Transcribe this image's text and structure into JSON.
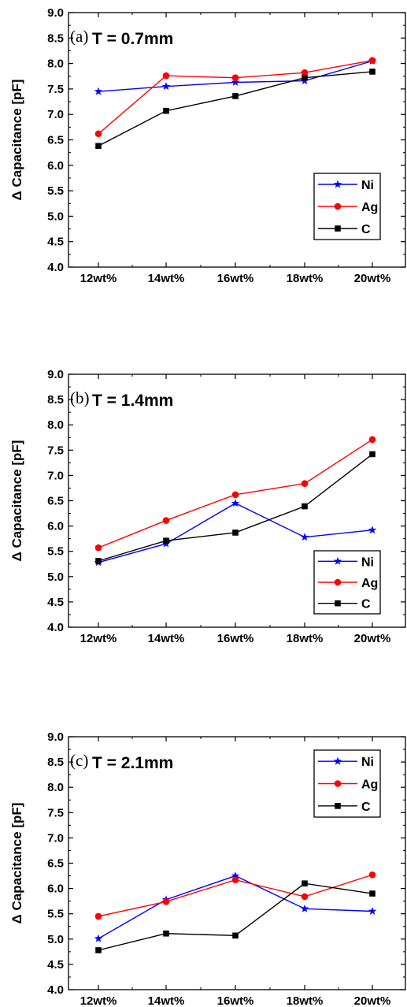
{
  "chart_data": [
    {
      "type": "line",
      "panel_label": "(a)",
      "title": "T = 0.7mm",
      "ylabel": "Δ Capacitance [pF]",
      "xlabel": "",
      "categories": [
        "12wt%",
        "14wt%",
        "16wt%",
        "18wt%",
        "20wt%"
      ],
      "ylim": [
        4.0,
        9.0
      ],
      "yticks": [
        "4.0",
        "4.5",
        "5.0",
        "5.5",
        "6.0",
        "6.5",
        "7.0",
        "7.5",
        "8.0",
        "8.5",
        "9.0"
      ],
      "legend_position": "bottom-right",
      "series": [
        {
          "name": "Ni",
          "color": "#0000ff",
          "marker": "star",
          "values": [
            7.45,
            7.55,
            7.63,
            7.66,
            8.05
          ]
        },
        {
          "name": "Ag",
          "color": "#ff0000",
          "marker": "circle",
          "values": [
            6.62,
            7.76,
            7.72,
            7.82,
            8.06
          ]
        },
        {
          "name": "C",
          "color": "#000000",
          "marker": "square",
          "values": [
            6.38,
            7.07,
            7.36,
            7.72,
            7.84
          ]
        }
      ]
    },
    {
      "type": "line",
      "panel_label": "(b)",
      "title": "T = 1.4mm",
      "ylabel": "Δ Capacitance [pF]",
      "xlabel": "",
      "categories": [
        "12wt%",
        "14wt%",
        "16wt%",
        "18wt%",
        "20wt%"
      ],
      "ylim": [
        4.0,
        9.0
      ],
      "yticks": [
        "4.0",
        "4.5",
        "5.0",
        "5.5",
        "6.0",
        "6.5",
        "7.0",
        "7.5",
        "8.0",
        "8.5",
        "9.0"
      ],
      "legend_position": "bottom-right",
      "series": [
        {
          "name": "Ni",
          "color": "#0000ff",
          "marker": "star",
          "values": [
            5.28,
            5.65,
            6.45,
            5.78,
            5.92
          ]
        },
        {
          "name": "Ag",
          "color": "#ff0000",
          "marker": "circle",
          "values": [
            5.57,
            6.11,
            6.62,
            6.84,
            7.71
          ]
        },
        {
          "name": "C",
          "color": "#000000",
          "marker": "square",
          "values": [
            5.31,
            5.71,
            5.87,
            6.39,
            7.42
          ]
        }
      ]
    },
    {
      "type": "line",
      "panel_label": "(c)",
      "title": "T = 2.1mm",
      "ylabel": "Δ Capacitance [pF]",
      "xlabel": "",
      "categories": [
        "12wt%",
        "14wt%",
        "16wt%",
        "18wt%",
        "20wt%"
      ],
      "ylim": [
        4.0,
        9.0
      ],
      "yticks": [
        "4.0",
        "4.5",
        "5.0",
        "5.5",
        "6.0",
        "6.5",
        "7.0",
        "7.5",
        "8.0",
        "8.5",
        "9.0"
      ],
      "legend_position": "top-right",
      "series": [
        {
          "name": "Ni",
          "color": "#0000ff",
          "marker": "star",
          "values": [
            5.01,
            5.78,
            6.25,
            5.6,
            5.55
          ]
        },
        {
          "name": "Ag",
          "color": "#ff0000",
          "marker": "circle",
          "values": [
            5.45,
            5.74,
            6.17,
            5.84,
            6.27
          ]
        },
        {
          "name": "C",
          "color": "#000000",
          "marker": "square",
          "values": [
            4.78,
            5.11,
            5.07,
            6.1,
            5.9
          ]
        }
      ]
    }
  ]
}
